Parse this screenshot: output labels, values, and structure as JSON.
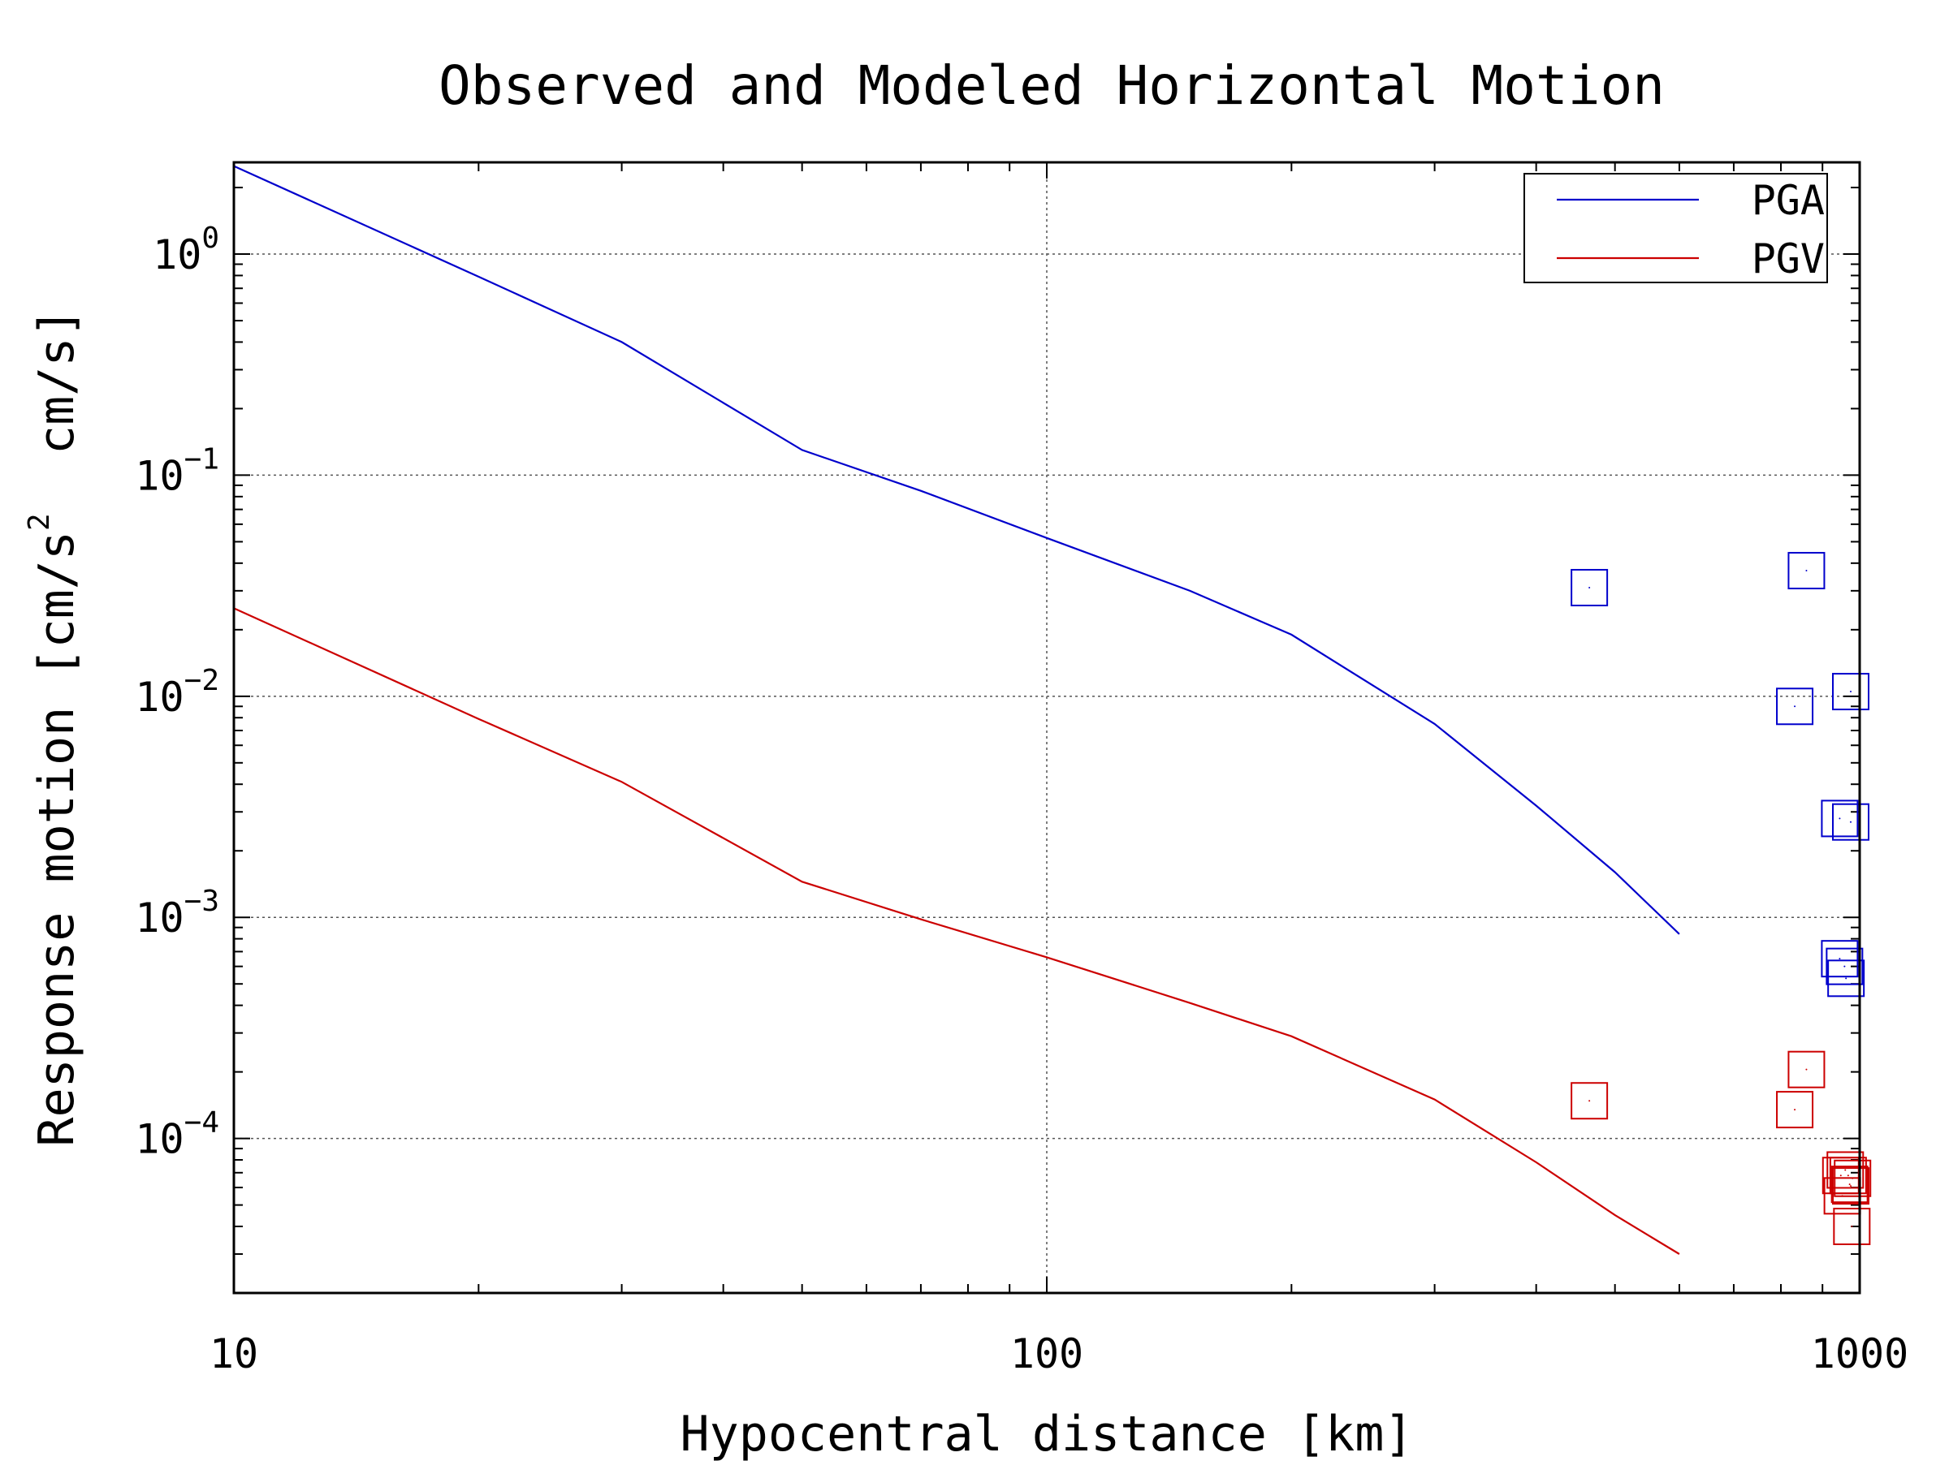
{
  "chart_data": {
    "type": "line",
    "title": "Observed and Modeled Horizontal Motion",
    "xlabel": "Hypocentral distance [km]",
    "ylabel": "Response motion [cm/s² cm/s]",
    "ylabel_parts": {
      "pre": "Response motion [cm/s",
      "sup": "2",
      "post": "  cm/s]"
    },
    "x_scale": "log",
    "y_scale": "log",
    "xlim": [
      10,
      1000
    ],
    "ylim": [
      2e-05,
      2.6
    ],
    "x_ticks": [
      {
        "value": 10,
        "label": "10"
      },
      {
        "value": 100,
        "label": "100"
      },
      {
        "value": 1000,
        "label": "1000"
      }
    ],
    "y_ticks": [
      {
        "value": 1,
        "base": "10",
        "exp": "0"
      },
      {
        "value": 0.1,
        "base": "10",
        "exp": "−1"
      },
      {
        "value": 0.01,
        "base": "10",
        "exp": "−2"
      },
      {
        "value": 0.001,
        "base": "10",
        "exp": "−3"
      },
      {
        "value": 0.0001,
        "base": "10",
        "exp": "−4"
      }
    ],
    "grid": true,
    "legend_position": "top-right",
    "series": [
      {
        "name": "PGA",
        "color": "#0000cc",
        "model": {
          "x": [
            10,
            20,
            30,
            50,
            70,
            100,
            150,
            200,
            300,
            400,
            500,
            600
          ],
          "y": [
            2.5,
            0.79,
            0.4,
            0.13,
            0.085,
            0.052,
            0.03,
            0.019,
            0.0075,
            0.0032,
            0.0016,
            0.00084
          ]
        },
        "observed": {
          "x": [
            465,
            860,
            832,
            975,
            945,
            975,
            945,
            958,
            962
          ],
          "y": [
            0.031,
            0.037,
            0.009,
            0.0105,
            0.0028,
            0.0027,
            0.00065,
            0.0006,
            0.00053
          ]
        }
      },
      {
        "name": "PGV",
        "color": "#cc0000",
        "model": {
          "x": [
            10,
            20,
            30,
            50,
            70,
            100,
            150,
            200,
            300,
            400,
            500,
            600
          ],
          "y": [
            0.025,
            0.0079,
            0.0041,
            0.00145,
            0.00098,
            0.00066,
            0.00041,
            0.00029,
            0.00015,
            7.8e-05,
            4.5e-05,
            3e-05
          ]
        },
        "observed": {
          "x": [
            465,
            860,
            832,
            948,
            960,
            972,
            980,
            952,
            975,
            978,
            968
          ],
          "y": [
            0.000148,
            0.000205,
            0.000135,
            6.8e-05,
            7.2e-05,
            6.2e-05,
            6.6e-05,
            5.5e-05,
            6.1e-05,
            4e-05,
            6.8e-05
          ]
        }
      }
    ]
  }
}
